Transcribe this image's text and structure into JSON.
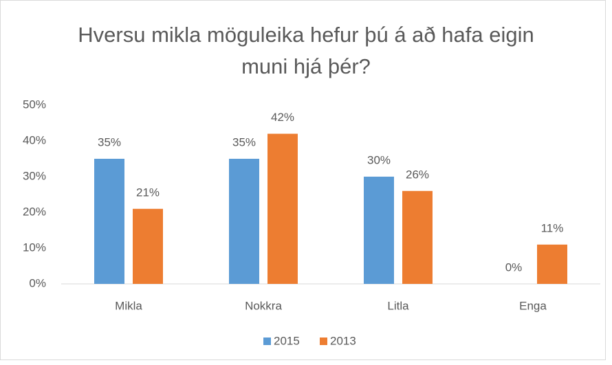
{
  "chart_data": {
    "type": "bar",
    "title": "Hversu mikla möguleika hefur þú á að hafa eigin muni hjá þér?",
    "categories": [
      "Mikla",
      "Nokkra",
      "Litla",
      "Enga"
    ],
    "series": [
      {
        "name": "2015",
        "color": "#5b9bd5",
        "values": [
          35,
          35,
          30,
          0
        ],
        "value_labels": [
          "35%",
          "35%",
          "30%",
          "0%"
        ]
      },
      {
        "name": "2013",
        "color": "#ed7d31",
        "values": [
          21,
          42,
          26,
          11
        ],
        "value_labels": [
          "21%",
          "42%",
          "26%",
          "11%"
        ]
      }
    ],
    "ylim": [
      0,
      50
    ],
    "yticks": [
      {
        "value": 0,
        "label": "0%"
      },
      {
        "value": 10,
        "label": "10%"
      },
      {
        "value": 20,
        "label": "20%"
      },
      {
        "value": 30,
        "label": "30%"
      },
      {
        "value": 40,
        "label": "40%"
      },
      {
        "value": 50,
        "label": "50%"
      }
    ],
    "grid": false,
    "legend": "bottom"
  }
}
